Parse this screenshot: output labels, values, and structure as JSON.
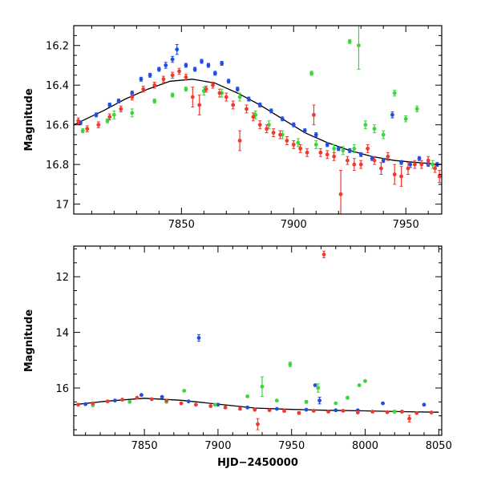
{
  "chart_data": [
    {
      "type": "scatter",
      "title": "",
      "xlabel": "",
      "ylabel": "Magnitude",
      "xlim": [
        7802,
        7966
      ],
      "ylim": [
        17.05,
        16.1
      ],
      "y_inverted": true,
      "grid": false,
      "xticks": [
        7850,
        7900,
        7950
      ],
      "yticks": [
        16.2,
        16.4,
        16.6,
        16.8,
        17
      ],
      "ytick_labels": [
        "16.2",
        "16.4",
        "16.6",
        "16.8",
        "17"
      ],
      "model_curve": {
        "color": "#000000",
        "x": [
          7802,
          7815,
          7825,
          7835,
          7845,
          7855,
          7865,
          7875,
          7885,
          7895,
          7905,
          7915,
          7925,
          7935,
          7945,
          7955,
          7966
        ],
        "y": [
          16.6,
          16.53,
          16.47,
          16.42,
          16.38,
          16.37,
          16.39,
          16.44,
          16.5,
          16.57,
          16.64,
          16.69,
          16.73,
          16.76,
          16.78,
          16.79,
          16.8
        ]
      },
      "series": [
        {
          "color": "#1f4fe0",
          "x": [
            7805,
            7812,
            7818,
            7822,
            7828,
            7832,
            7836,
            7840,
            7843,
            7846,
            7848,
            7852,
            7856,
            7859,
            7862,
            7865,
            7868,
            7871,
            7875,
            7880,
            7885,
            7890,
            7895,
            7900,
            7905,
            7910,
            7915,
            7920,
            7925,
            7930,
            7935,
            7940,
            7944,
            7948,
            7952,
            7956,
            7960,
            7964
          ],
          "y": [
            16.59,
            16.55,
            16.5,
            16.48,
            16.44,
            16.37,
            16.35,
            16.32,
            16.3,
            16.27,
            16.22,
            16.3,
            16.32,
            16.28,
            16.3,
            16.34,
            16.29,
            16.38,
            16.42,
            16.47,
            16.5,
            16.53,
            16.57,
            16.6,
            16.63,
            16.65,
            16.7,
            16.72,
            16.73,
            16.75,
            16.77,
            16.78,
            16.55,
            16.79,
            16.8,
            16.77,
            16.8,
            16.8
          ],
          "yerr": [
            0.01,
            0.01,
            0.01,
            0.01,
            0.01,
            0.01,
            0.01,
            0.01,
            0.015,
            0.015,
            0.025,
            0.01,
            0.01,
            0.01,
            0.01,
            0.01,
            0.01,
            0.01,
            0.01,
            0.01,
            0.01,
            0.01,
            0.01,
            0.01,
            0.01,
            0.01,
            0.01,
            0.01,
            0.01,
            0.01,
            0.01,
            0.01,
            0.015,
            0.01,
            0.015,
            0.01,
            0.01,
            0.01
          ]
        },
        {
          "color": "#3cd63c",
          "x": [
            7806,
            7817,
            7820,
            7828,
            7838,
            7846,
            7852,
            7860,
            7868,
            7876,
            7883,
            7889,
            7895,
            7902,
            7908,
            7910,
            7918,
            7922,
            7925,
            7927,
            7929,
            7932,
            7936,
            7940,
            7945,
            7950,
            7955,
            7962
          ],
          "y": [
            16.63,
            16.58,
            16.55,
            16.54,
            16.48,
            16.45,
            16.42,
            16.43,
            16.44,
            16.46,
            16.55,
            16.6,
            16.65,
            16.69,
            16.34,
            16.7,
            16.72,
            16.73,
            16.18,
            16.72,
            16.2,
            16.6,
            16.62,
            16.65,
            16.44,
            16.57,
            16.52,
            16.8
          ],
          "yerr": [
            0.01,
            0.01,
            0.02,
            0.02,
            0.01,
            0.01,
            0.01,
            0.02,
            0.02,
            0.02,
            0.02,
            0.02,
            0.02,
            0.02,
            0.01,
            0.02,
            0.02,
            0.02,
            0.01,
            0.02,
            0.12,
            0.02,
            0.02,
            0.02,
            0.015,
            0.015,
            0.015,
            0.02
          ]
        },
        {
          "color": "#f03a2e",
          "x": [
            7804,
            7808,
            7813,
            7818,
            7823,
            7828,
            7833,
            7838,
            7842,
            7846,
            7849,
            7852,
            7855,
            7858,
            7861,
            7864,
            7867,
            7870,
            7873,
            7876,
            7879,
            7882,
            7885,
            7888,
            7891,
            7894,
            7897,
            7900,
            7903,
            7906,
            7909,
            7912,
            7915,
            7918,
            7921,
            7924,
            7927,
            7930,
            7933,
            7936,
            7939,
            7942,
            7945,
            7948,
            7951,
            7954,
            7957,
            7960,
            7963,
            7965
          ],
          "y": [
            16.58,
            16.62,
            16.6,
            16.56,
            16.52,
            16.46,
            16.42,
            16.4,
            16.37,
            16.35,
            16.33,
            16.36,
            16.46,
            16.5,
            16.42,
            16.4,
            16.44,
            16.46,
            16.5,
            16.68,
            16.52,
            16.56,
            16.6,
            16.62,
            16.64,
            16.65,
            16.68,
            16.7,
            16.72,
            16.74,
            16.55,
            16.74,
            16.75,
            16.76,
            16.95,
            16.78,
            16.8,
            16.8,
            16.72,
            16.78,
            16.82,
            16.76,
            16.85,
            16.86,
            16.82,
            16.8,
            16.8,
            16.78,
            16.82,
            16.86
          ],
          "yerr": [
            0.015,
            0.015,
            0.015,
            0.015,
            0.015,
            0.015,
            0.015,
            0.015,
            0.015,
            0.015,
            0.015,
            0.015,
            0.05,
            0.05,
            0.015,
            0.015,
            0.02,
            0.02,
            0.02,
            0.05,
            0.02,
            0.02,
            0.02,
            0.02,
            0.02,
            0.02,
            0.02,
            0.02,
            0.02,
            0.02,
            0.05,
            0.02,
            0.02,
            0.02,
            0.12,
            0.02,
            0.03,
            0.02,
            0.02,
            0.02,
            0.03,
            0.02,
            0.05,
            0.05,
            0.03,
            0.02,
            0.02,
            0.02,
            0.02,
            0.03
          ]
        }
      ]
    },
    {
      "type": "scatter",
      "title": "",
      "xlabel": "HJD−2450000",
      "ylabel": "Magnitude",
      "xlim": [
        7802,
        8052
      ],
      "ylim": [
        17.7,
        10.9
      ],
      "y_inverted": true,
      "grid": false,
      "xticks": [
        7850,
        7900,
        7950,
        8000,
        8050
      ],
      "yticks": [
        12,
        14,
        16
      ],
      "ytick_labels": [
        "12",
        "14",
        "16"
      ],
      "model_curve": {
        "color": "#000000",
        "x": [
          7802,
          7825,
          7850,
          7875,
          7900,
          7925,
          7950,
          7975,
          8000,
          8025,
          8050
        ],
        "y": [
          16.6,
          16.47,
          16.37,
          16.44,
          16.58,
          16.72,
          16.77,
          16.8,
          16.82,
          16.85,
          16.87
        ]
      },
      "series": [
        {
          "color": "#1f4fe0",
          "x": [
            7810,
            7830,
            7848,
            7862,
            7880,
            7887,
            7900,
            7920,
            7940,
            7960,
            7966,
            7969,
            7980,
            7995,
            8012,
            8025,
            8040
          ],
          "y": [
            16.58,
            16.45,
            16.25,
            16.32,
            16.48,
            14.2,
            16.6,
            16.7,
            16.75,
            16.78,
            15.9,
            16.45,
            16.8,
            16.8,
            16.55,
            16.85,
            16.6
          ],
          "yerr": [
            0.02,
            0.02,
            0.03,
            0.02,
            0.02,
            0.12,
            0.02,
            0.02,
            0.02,
            0.02,
            0.03,
            0.12,
            0.02,
            0.02,
            0.03,
            0.02,
            0.03
          ]
        },
        {
          "color": "#3cd63c",
          "x": [
            7815,
            7840,
            7865,
            7877,
            7898,
            7920,
            7930,
            7940,
            7949,
            7960,
            7968,
            7980,
            7988,
            7996,
            8000,
            8020
          ],
          "y": [
            16.62,
            16.5,
            16.5,
            16.1,
            16.6,
            16.3,
            15.95,
            16.45,
            15.15,
            16.5,
            16.0,
            16.55,
            16.35,
            15.9,
            15.75,
            16.85
          ],
          "yerr": [
            0.03,
            0.03,
            0.03,
            0.03,
            0.03,
            0.03,
            0.35,
            0.03,
            0.08,
            0.05,
            0.15,
            0.03,
            0.05,
            0.03,
            0.03,
            0.05
          ]
        },
        {
          "color": "#f03a2e",
          "x": [
            7805,
            7815,
            7825,
            7835,
            7845,
            7855,
            7865,
            7875,
            7885,
            7895,
            7905,
            7915,
            7925,
            7927,
            7935,
            7945,
            7955,
            7965,
            7972,
            7975,
            7985,
            7995,
            8005,
            8015,
            8025,
            8030,
            8035,
            8045
          ],
          "y": [
            16.6,
            16.55,
            16.48,
            16.42,
            16.35,
            16.4,
            16.45,
            16.55,
            16.6,
            16.65,
            16.7,
            16.75,
            16.78,
            17.3,
            16.8,
            16.82,
            16.9,
            16.82,
            11.2,
            16.85,
            16.82,
            16.88,
            16.85,
            16.87,
            16.85,
            17.1,
            16.9,
            16.88
          ],
          "yerr": [
            0.03,
            0.03,
            0.03,
            0.03,
            0.03,
            0.03,
            0.03,
            0.03,
            0.03,
            0.03,
            0.03,
            0.03,
            0.03,
            0.2,
            0.03,
            0.05,
            0.05,
            0.03,
            0.12,
            0.03,
            0.03,
            0.03,
            0.03,
            0.03,
            0.03,
            0.12,
            0.03,
            0.03
          ]
        }
      ]
    }
  ]
}
